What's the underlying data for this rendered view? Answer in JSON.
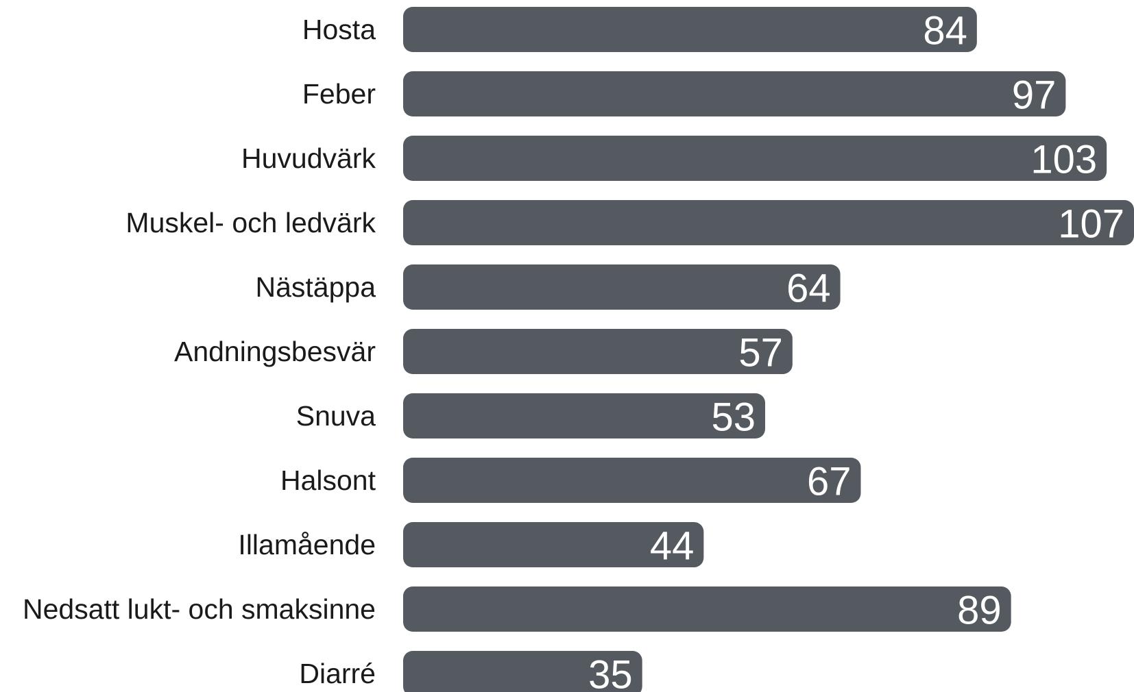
{
  "chart_data": {
    "type": "bar",
    "orientation": "horizontal",
    "categories": [
      "Hosta",
      "Feber",
      "Huvudvärk",
      "Muskel- och ledvärk",
      "Nästäppa",
      "Andningsbesvär",
      "Snuva",
      "Halsont",
      "Illamående",
      "Nedsatt lukt- och smaksinne",
      "Diarré"
    ],
    "values": [
      84,
      97,
      103,
      107,
      64,
      57,
      53,
      67,
      44,
      89,
      35
    ],
    "color": "#555a60"
  }
}
